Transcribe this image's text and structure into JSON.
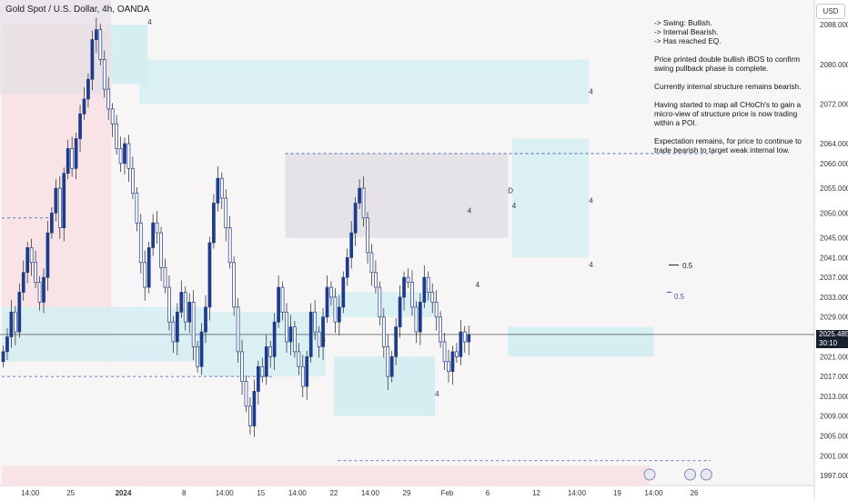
{
  "title": "Gold Spot / U.S. Dollar, 4h, OANDA",
  "currency_button": "USD",
  "notes": [
    "-> Swing: Bullish.",
    "-> Internal Bearish.",
    "-> Has reached EQ.",
    "Price printed double bullish iBOS to confirm swing pullback phase is complete.",
    "Currently internal structure remains bearish.",
    "Having started to map all CHoCh's to gain a micro-view of structure price is now trading within a POI.",
    "Expectation remains, for price to continue to trade bearish to target weak internal low."
  ],
  "fib_labels": [
    "0.5",
    "0.5"
  ],
  "zone_markers": [
    "4",
    "4",
    "4",
    "4",
    "4",
    "4",
    "4",
    "4",
    "4",
    "D"
  ],
  "current_price": "2025.485",
  "countdown": "30:10",
  "colors": {
    "bull": "#1e3a8a",
    "bear": "#1e3a8a",
    "demand_zone": "#d5eef2",
    "supply_zone": "#e2dfe5",
    "premium_zone": "#f8e1e3",
    "dashed_line": "#3a5aa8",
    "price_tag": "#16202c",
    "background": "#f8f5f7"
  },
  "chart_data": {
    "type": "candlestick",
    "title": "Gold Spot / U.S. Dollar, 4h, OANDA",
    "y_axis_side": "right",
    "ylim": [
      1995,
      2093
    ],
    "y_ticks": [
      "2088.000",
      "2080.000",
      "2072.000",
      "2064.000",
      "2060.000",
      "2055.000",
      "2050.000",
      "2045.000",
      "2041.000",
      "2037.000",
      "2033.000",
      "2029.000",
      "2021.000",
      "2017.000",
      "2013.000",
      "2009.000",
      "2005.000",
      "2001.000",
      "1997.000"
    ],
    "y_tick_values": [
      2088,
      2080,
      2072,
      2064,
      2060,
      2055,
      2050,
      2045,
      2041,
      2037,
      2033,
      2029,
      2021,
      2017,
      2013,
      2009,
      2005,
      2001,
      1997
    ],
    "x_ticks": [
      "14:00",
      "25",
      "2024",
      "8",
      "14:00",
      "15",
      "14:00",
      "22",
      "14:00",
      "29",
      "Feb",
      "6",
      "12",
      "14:00",
      "19",
      "14:00",
      "26"
    ],
    "x_tick_index": [
      7,
      17,
      30,
      45,
      55,
      64,
      73,
      82,
      91,
      100,
      110,
      120,
      132,
      142,
      152,
      161,
      171
    ],
    "closes": [
      2022,
      2025,
      2030,
      2026,
      2034,
      2038,
      2043,
      2040,
      2036,
      2032,
      2037,
      2046,
      2050,
      2055,
      2047,
      2058,
      2063,
      2059,
      2065,
      2070,
      2073,
      2077,
      2085,
      2087,
      2081,
      2075,
      2071,
      2068,
      2063,
      2060,
      2064,
      2059,
      2054,
      2048,
      2040,
      2035,
      2043,
      2048,
      2046,
      2039,
      2035,
      2028,
      2024,
      2030,
      2034,
      2028,
      2032,
      2023,
      2019,
      2026,
      2031,
      2044,
      2052,
      2057,
      2053,
      2047,
      2040,
      2031,
      2022,
      2016,
      2011,
      2007,
      2014,
      2019,
      2017,
      2023,
      2021,
      2028,
      2035,
      2030,
      2024,
      2027,
      2022,
      2019,
      2015,
      2021,
      2030,
      2026,
      2023,
      2029,
      2035,
      2033,
      2028,
      2031,
      2037,
      2041,
      2046,
      2052,
      2055,
      2049,
      2042,
      2038,
      2035,
      2029,
      2023,
      2017,
      2021,
      2027,
      2033,
      2037,
      2036,
      2031,
      2026,
      2032,
      2037,
      2034,
      2032,
      2029,
      2024,
      2020,
      2018,
      2022,
      2021,
      2026,
      2024,
      2025.485
    ],
    "series": [
      {
        "name": "",
        "type": "candlestick"
      }
    ],
    "zones": [
      {
        "kind": "premium",
        "from": 2088,
        "to": 2020
      },
      {
        "kind": "demand",
        "from": 2081,
        "to": 2072
      },
      {
        "kind": "supply",
        "from": 2062,
        "to": 2045
      },
      {
        "kind": "demand",
        "from": 2065,
        "to": 2041
      },
      {
        "kind": "demand",
        "from": 2030,
        "to": 2017
      },
      {
        "kind": "demand",
        "from": 2034,
        "to": 2029
      },
      {
        "kind": "premium",
        "from": 1999,
        "to": 1995
      }
    ],
    "levels": [
      2062,
      2017,
      2000,
      2049
    ],
    "fib_levels": [
      2039.5,
      2034
    ],
    "grid": false,
    "legend": "none"
  }
}
